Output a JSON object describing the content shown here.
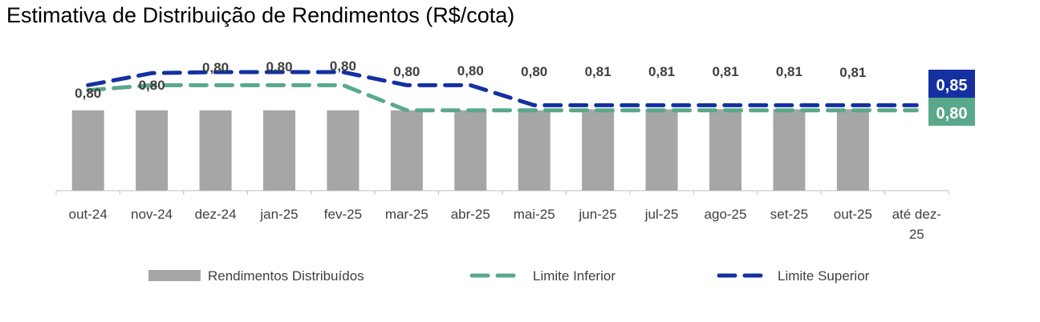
{
  "chart_data": {
    "type": "bar",
    "title": "Estimativa de Distribuição de Rendimentos (R$/cota)",
    "xlabel": "",
    "ylabel": "",
    "ylim": [
      0,
      1.3
    ],
    "grid": false,
    "legend_position": "bottom",
    "categories": [
      "out-24",
      "nov-24",
      "dez-24",
      "jan-25",
      "fev-25",
      "mar-25",
      "abr-25",
      "mai-25",
      "jun-25",
      "jul-25",
      "ago-25",
      "set-25",
      "out-25",
      "até dez-25"
    ],
    "series": [
      {
        "name": "Rendimentos Distribuídos",
        "kind": "bar",
        "color": "#a6a6a6",
        "values": [
          0.8,
          0.8,
          0.8,
          0.8,
          0.8,
          0.8,
          0.8,
          0.8,
          0.81,
          0.81,
          0.81,
          0.81,
          0.81,
          null
        ],
        "labels": [
          "0,80",
          "0,80",
          "0,80",
          "0,80",
          "0,80",
          "0,80",
          "0,80",
          "0,80",
          "0,81",
          "0,81",
          "0,81",
          "0,81",
          "0,81",
          ""
        ]
      },
      {
        "name": "Limite Inferior",
        "kind": "dashed-line",
        "color": "#5aa88a",
        "values": [
          1.0,
          1.05,
          1.05,
          1.05,
          1.05,
          0.8,
          0.8,
          0.8,
          0.8,
          0.8,
          0.8,
          0.8,
          0.8,
          0.8
        ]
      },
      {
        "name": "Limite Superior",
        "kind": "dashed-line",
        "color": "#1530a0",
        "values": [
          1.05,
          1.17,
          1.18,
          1.18,
          1.18,
          1.05,
          1.05,
          0.85,
          0.85,
          0.85,
          0.85,
          0.85,
          0.85,
          0.85
        ]
      }
    ],
    "end_labels": [
      {
        "text": "0,85",
        "series": "Limite Superior",
        "color": "#1530a0"
      },
      {
        "text": "0,80",
        "series": "Limite Inferior",
        "color": "#5aa88a"
      }
    ]
  }
}
